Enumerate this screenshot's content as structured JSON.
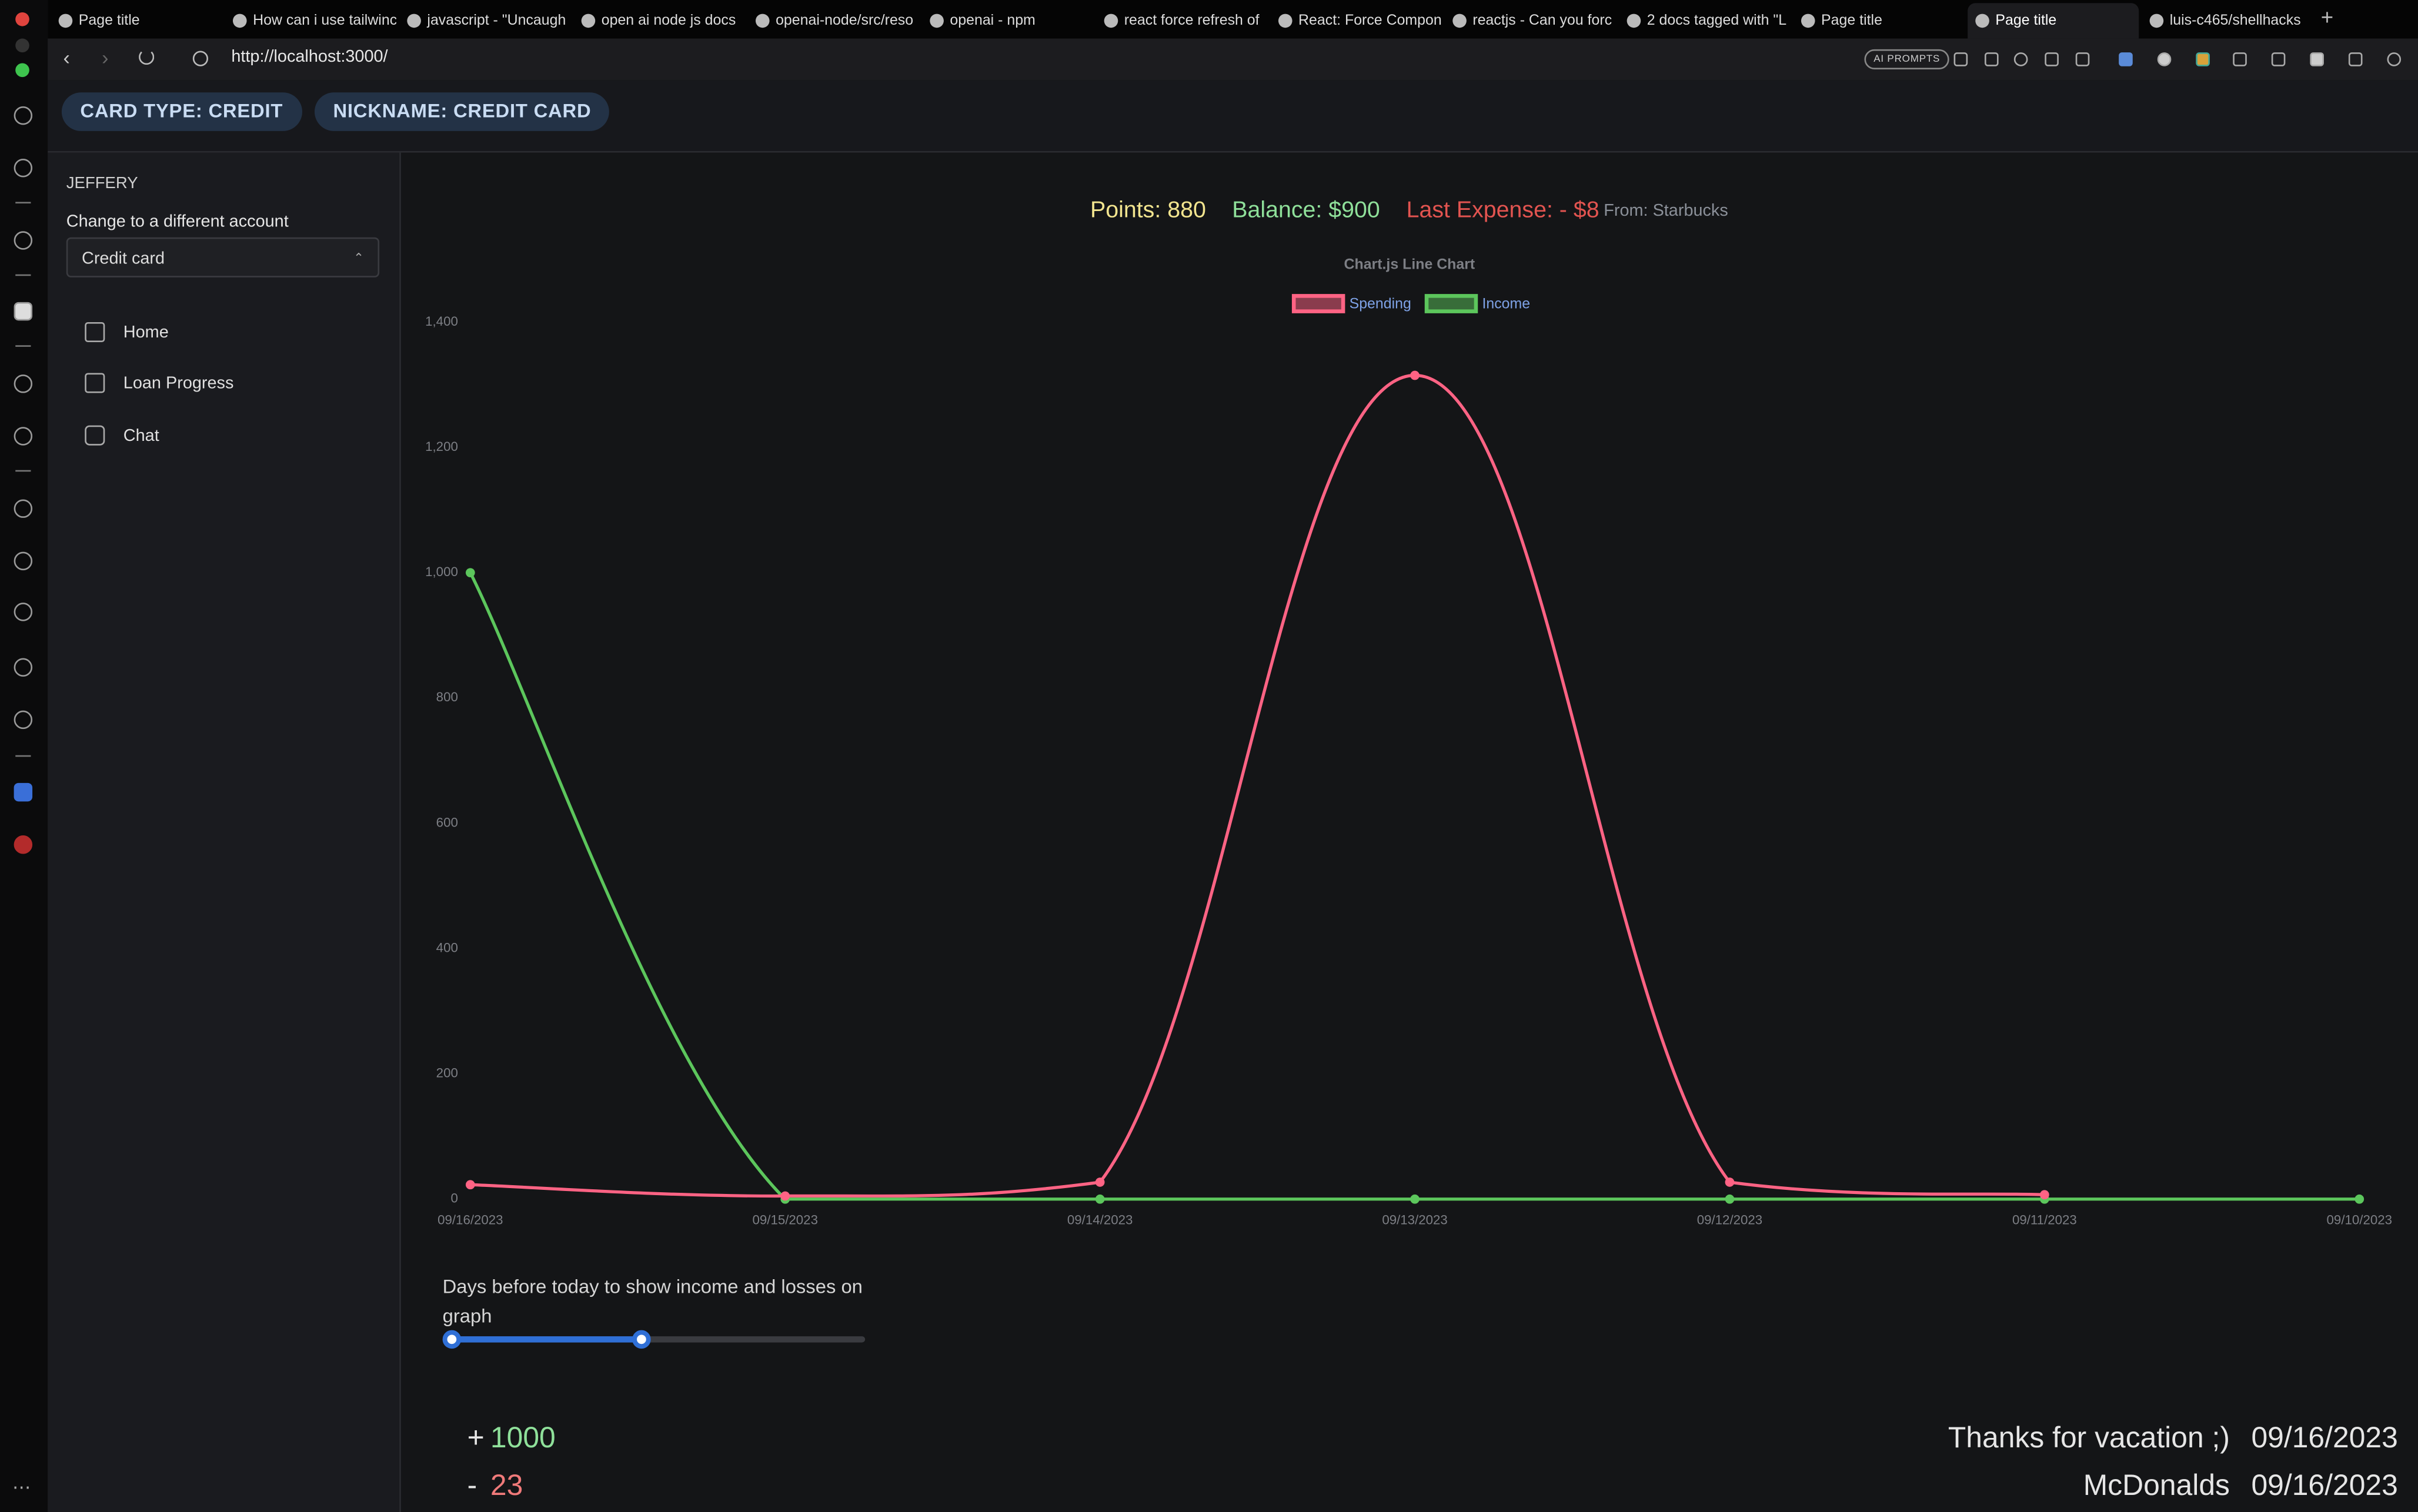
{
  "browser": {
    "tabs": [
      {
        "title": "Page title"
      },
      {
        "title": "How can i use tailwinc"
      },
      {
        "title": "javascript - \"Uncaugh"
      },
      {
        "title": "open ai node js docs"
      },
      {
        "title": "openai-node/src/reso"
      },
      {
        "title": "openai - npm"
      },
      {
        "title": "react force refresh of"
      },
      {
        "title": "React: Force Compon"
      },
      {
        "title": "reactjs - Can you forc"
      },
      {
        "title": "2 docs tagged with \"L"
      },
      {
        "title": "Page title"
      },
      {
        "title": "Page title",
        "active": true
      },
      {
        "title": "luis-c465/shellhacks"
      }
    ],
    "url": "http://localhost:3000/",
    "ai_prompts": "AI PROMPTS"
  },
  "header": {
    "chips": [
      "CARD TYPE: CREDIT",
      "NICKNAME: CREDIT CARD"
    ]
  },
  "sidebar": {
    "user": "JEFFERY",
    "account_label": "Change to a different account",
    "account_select": "Credit card",
    "nav": [
      "Home",
      "Loan Progress",
      "Chat"
    ]
  },
  "summary": {
    "points": "Points: 880",
    "balance": "Balance: $900",
    "last_expense": "Last Expense: - $8",
    "from": "From: Starbucks"
  },
  "chart_data": {
    "type": "line",
    "title": "Chart.js Line Chart",
    "categories": [
      "09/16/2023",
      "09/15/2023",
      "09/14/2023",
      "09/13/2023",
      "09/12/2023",
      "09/11/2023",
      "09/10/2023"
    ],
    "series": [
      {
        "name": "Spending",
        "color": "#ff6384",
        "values": [
          23,
          5,
          27,
          1315,
          27,
          7,
          null
        ]
      },
      {
        "name": "Income",
        "color": "#5cc65c",
        "values": [
          1000,
          0,
          0,
          0,
          0,
          0,
          0
        ]
      }
    ],
    "ylim": [
      0,
      1400
    ],
    "yticks": [
      0,
      200,
      400,
      600,
      800,
      {
        "value": 1000,
        "label": "1,000"
      },
      {
        "value": 1200,
        "label": "1,200"
      },
      {
        "value": 1400,
        "label": "1,400"
      }
    ],
    "grid": false,
    "legend": "top"
  },
  "range_filter": {
    "label": "Days before today to show income and losses on graph"
  },
  "transactions": [
    {
      "sign": "+",
      "amount": 1000,
      "description": "Thanks for vacation ;)",
      "date": "09/16/2023"
    },
    {
      "sign": "-",
      "amount": 23,
      "description": "McDonalds",
      "date": "09/16/2023"
    }
  ]
}
